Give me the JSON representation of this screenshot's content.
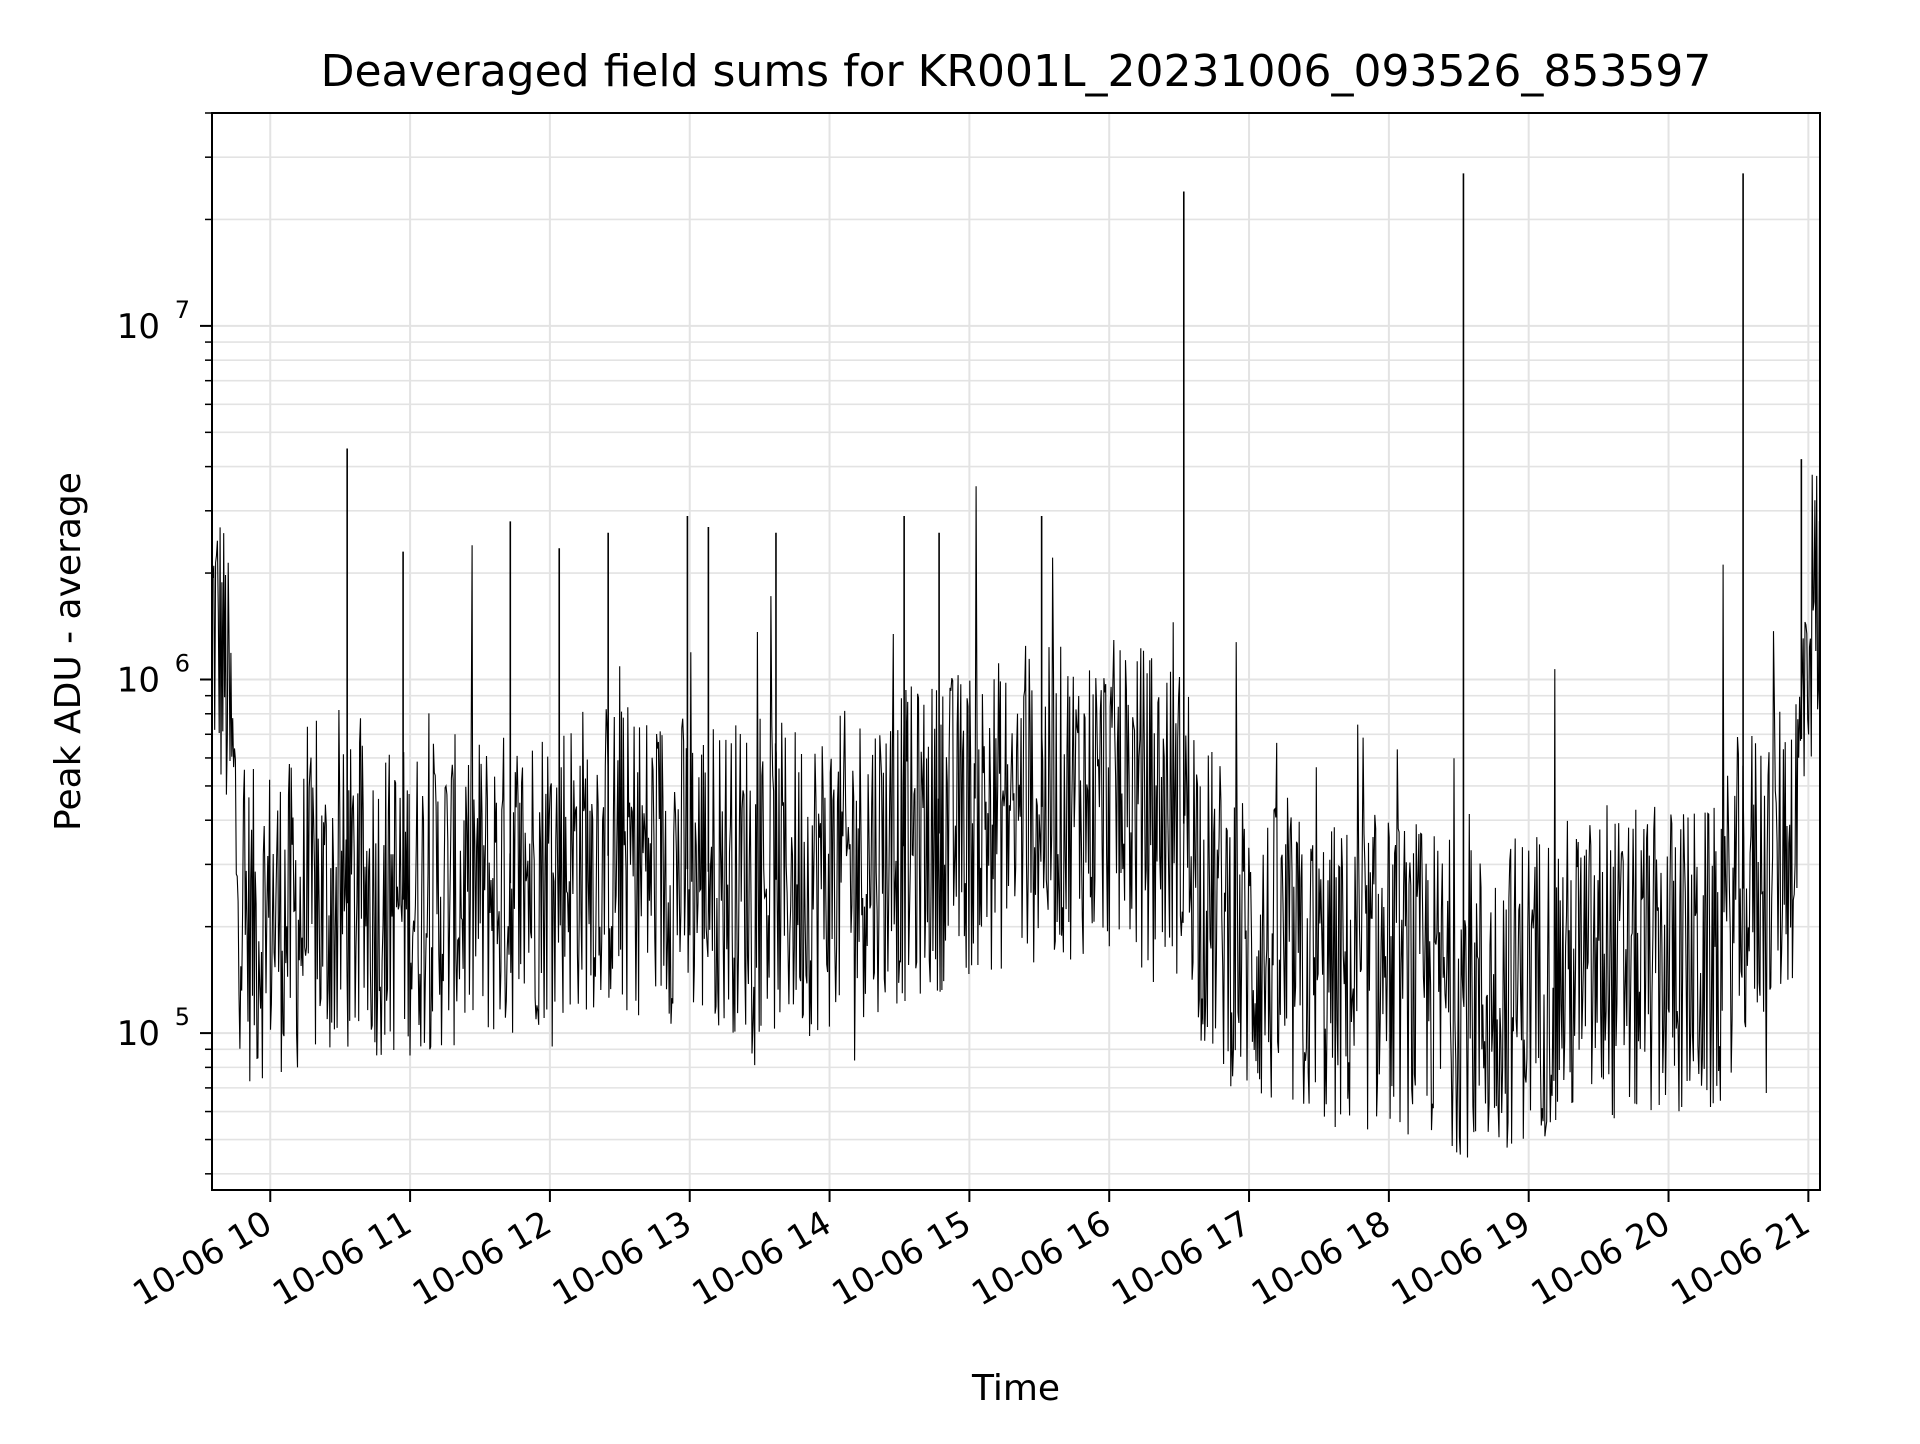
{
  "chart_data": {
    "type": "line",
    "title": "Deaveraged field sums for KR001L_20231006_093526_853597",
    "xlabel": "Time",
    "ylabel": "Peak ADU - average",
    "yscale": "log",
    "xlim": [
      "2023-10-06 09:35",
      "2023-10-06 21:05"
    ],
    "ylim": [
      36000,
      40000000
    ],
    "grid": true,
    "line_color": "#000000",
    "x_ticks": [
      {
        "time": "2023-10-06 10:00",
        "label": "10-06 10"
      },
      {
        "time": "2023-10-06 11:00",
        "label": "10-06 11"
      },
      {
        "time": "2023-10-06 12:00",
        "label": "10-06 12"
      },
      {
        "time": "2023-10-06 13:00",
        "label": "10-06 13"
      },
      {
        "time": "2023-10-06 14:00",
        "label": "10-06 14"
      },
      {
        "time": "2023-10-06 15:00",
        "label": "10-06 15"
      },
      {
        "time": "2023-10-06 16:00",
        "label": "10-06 16"
      },
      {
        "time": "2023-10-06 17:00",
        "label": "10-06 17"
      },
      {
        "time": "2023-10-06 18:00",
        "label": "10-06 18"
      },
      {
        "time": "2023-10-06 19:00",
        "label": "10-06 19"
      },
      {
        "time": "2023-10-06 20:00",
        "label": "10-06 20"
      },
      {
        "time": "2023-10-06 21:00",
        "label": "10-06 21"
      }
    ],
    "y_ticks": [
      {
        "value": 100000,
        "base": "10",
        "exp": "5"
      },
      {
        "value": 1000000,
        "base": "10",
        "exp": "6"
      },
      {
        "value": 10000000,
        "base": "10",
        "exp": "7"
      }
    ],
    "series": [
      {
        "x": [
          "2023-10-06 09:35",
          "2023-10-06 09:38",
          "2023-10-06 09:41",
          "2023-10-06 09:44",
          "2023-10-06 09:47",
          "2023-10-06 09:50",
          "2023-10-06 09:55",
          "2023-10-06 10:00",
          "2023-10-06 10:10",
          "2023-10-06 10:20",
          "2023-10-06 10:30",
          "2023-10-06 10:40",
          "2023-10-06 10:50",
          "2023-10-06 11:00",
          "2023-10-06 11:20",
          "2023-10-06 11:40",
          "2023-10-06 12:00",
          "2023-10-06 12:20",
          "2023-10-06 12:40",
          "2023-10-06 13:00",
          "2023-10-06 13:20",
          "2023-10-06 13:40",
          "2023-10-06 14:00",
          "2023-10-06 14:20",
          "2023-10-06 14:40",
          "2023-10-06 15:00",
          "2023-10-06 15:20",
          "2023-10-06 15:40",
          "2023-10-06 16:00",
          "2023-10-06 16:20",
          "2023-10-06 16:35",
          "2023-10-06 16:40",
          "2023-10-06 17:00",
          "2023-10-06 17:20",
          "2023-10-06 17:40",
          "2023-10-06 18:00",
          "2023-10-06 18:20",
          "2023-10-06 18:40",
          "2023-10-06 19:00",
          "2023-10-06 19:20",
          "2023-10-06 19:40",
          "2023-10-06 20:00",
          "2023-10-06 20:20",
          "2023-10-06 20:30",
          "2023-10-06 20:45",
          "2023-10-06 20:55",
          "2023-10-06 21:00",
          "2023-10-06 21:05"
        ],
        "y": [
          1500000,
          1300000,
          1000000,
          500000,
          250000,
          200000,
          200000,
          220000,
          210000,
          220000,
          230000,
          240000,
          235000,
          240000,
          250000,
          260000,
          300000,
          320000,
          310000,
          290000,
          280000,
          270000,
          280000,
          320000,
          350000,
          400000,
          420000,
          450000,
          470000,
          440000,
          380000,
          250000,
          170000,
          150000,
          140000,
          150000,
          135000,
          120000,
          140000,
          150000,
          150000,
          160000,
          155000,
          250000,
          300000,
          400000,
          1500000,
          1700000
        ]
      }
    ],
    "spikes": [
      {
        "x": "2023-10-06 10:33",
        "y": 4500000
      },
      {
        "x": "2023-10-06 10:57",
        "y": 2300000
      },
      {
        "x": "2023-10-06 11:43",
        "y": 2800000
      },
      {
        "x": "2023-10-06 12:04",
        "y": 2350000
      },
      {
        "x": "2023-10-06 12:25",
        "y": 2600000
      },
      {
        "x": "2023-10-06 12:59",
        "y": 2900000
      },
      {
        "x": "2023-10-06 13:08",
        "y": 2700000
      },
      {
        "x": "2023-10-06 13:37",
        "y": 2600000
      },
      {
        "x": "2023-10-06 14:32",
        "y": 2900000
      },
      {
        "x": "2023-10-06 14:47",
        "y": 2600000
      },
      {
        "x": "2023-10-06 15:31",
        "y": 2900000
      },
      {
        "x": "2023-10-06 16:32",
        "y": 24000000
      },
      {
        "x": "2023-10-06 18:32",
        "y": 27000000
      },
      {
        "x": "2023-10-06 20:32",
        "y": 27000000
      },
      {
        "x": "2023-10-06 20:57",
        "y": 4200000
      }
    ]
  }
}
